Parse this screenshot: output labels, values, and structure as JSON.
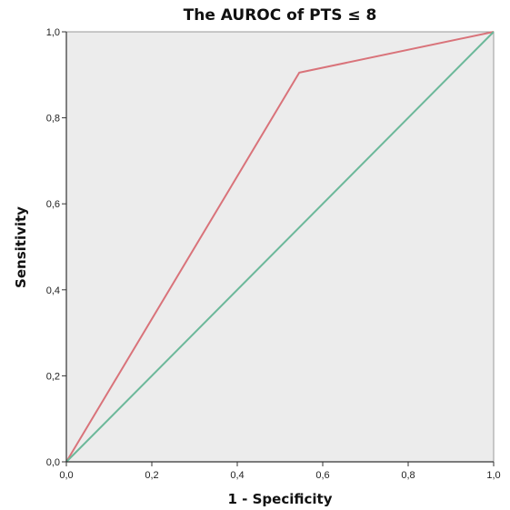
{
  "chart_data": {
    "type": "line",
    "title": "The AUROC of PTS ≤ 8",
    "xlabel": "1 - Specificity",
    "ylabel": "Sensitivity",
    "xlim": [
      0,
      1
    ],
    "ylim": [
      0,
      1
    ],
    "xticks": [
      "0,0",
      "0,2",
      "0,4",
      "0,6",
      "0,8",
      "1,0"
    ],
    "yticks": [
      "0,0",
      "0,2",
      "0,4",
      "0,6",
      "0,8",
      "1,0"
    ],
    "grid": false,
    "series": [
      {
        "x": [
          0,
          0.545,
          1
        ],
        "y": [
          0,
          0.905,
          1
        ],
        "color": "#d9737a"
      },
      {
        "x": [
          0,
          1
        ],
        "y": [
          0,
          1
        ],
        "color": "#6cb89a"
      }
    ],
    "colors": {
      "plot_background": "#ececec",
      "axis": "#333333"
    }
  }
}
